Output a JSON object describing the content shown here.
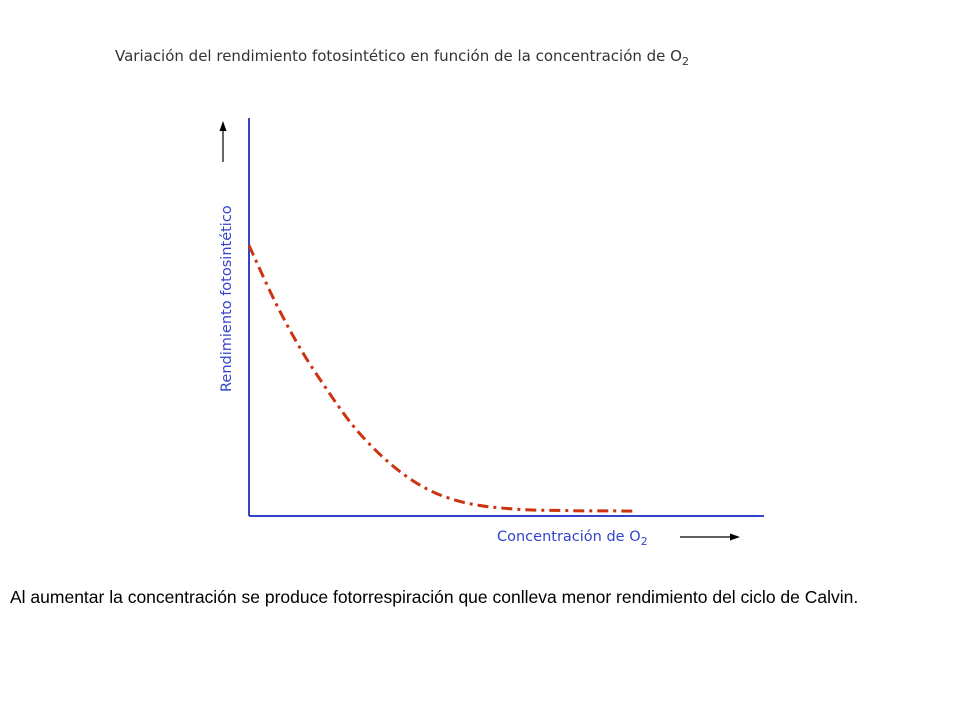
{
  "chart_data": {
    "type": "line",
    "title": "Variación del rendimiento fotosintético en función de la concentración de O",
    "title_subscript": "2",
    "xlabel": "Concentración de O",
    "xlabel_subscript": "2",
    "ylabel": "Rendimiento fotosintético",
    "x_tick_labels": [],
    "y_tick_labels": [],
    "xlim": [
      0,
      100
    ],
    "ylim": [
      0,
      100
    ],
    "grid": false,
    "series": [
      {
        "x": [
          0,
          5,
          10,
          15,
          20,
          25,
          30,
          35,
          40,
          45,
          50,
          55,
          60,
          65,
          70,
          75
        ],
        "y": [
          68,
          54,
          42,
          32,
          23,
          16,
          10.5,
          6.5,
          4,
          2.6,
          1.9,
          1.5,
          1.4,
          1.3,
          1.3,
          1.2
        ],
        "style": "dash-dot"
      }
    ],
    "colors": {
      "axes": "#3344cc",
      "curve": "#cc3311",
      "arrows": "#000000",
      "title": "#333333"
    }
  },
  "caption": "Al aumentar la concentración se produce fotorrespiración que conlleva menor rendimiento del ciclo de Calvin."
}
